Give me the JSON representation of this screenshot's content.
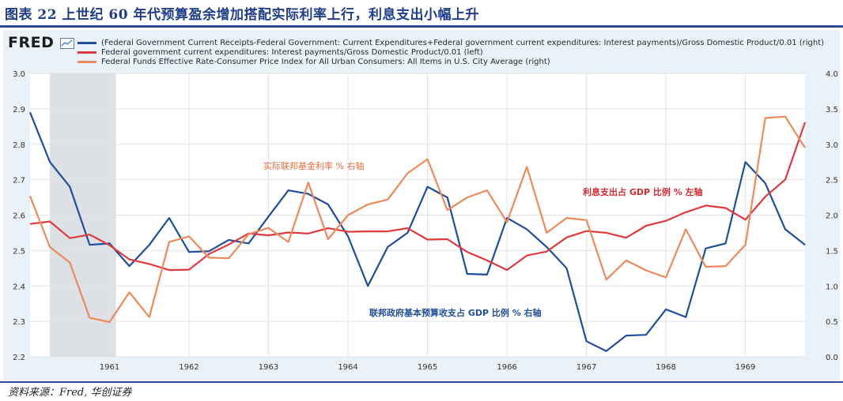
{
  "figure_title": "图表 22 上世纪 60 年代预算盈余增加搭配实际利率上行，利息支出小幅上升",
  "source": "资料来源：Fred, 华创证券",
  "legend": {
    "brand": "FRED",
    "icon": "chart-icon",
    "items": [
      {
        "label": "(Federal Government Current Receipts-Federal Government: Current Expenditures+Federal government current expenditures: Interest payments)/Gross Domestic Product/0.01 (right)",
        "color": "#1f4e9c"
      },
      {
        "label": "Federal government current expenditures: Interest payments/Gross Domestic Product/0.01 (left)",
        "color": "#e03a3e"
      },
      {
        "label": "Federal Funds Effective Rate-Consumer Price Index for All Urban Consumers: All Items in U.S. City Average (right)",
        "color": "#ee8a5a"
      }
    ]
  },
  "annotations": {
    "orange": "实际联邦基金利率 % 右轴",
    "red": "利息支出占 GDP 比例 % 左轴",
    "blue": "联邦政府基本预算收支占 GDP 比例 % 右轴"
  },
  "chart_data": {
    "type": "line",
    "title": "",
    "x_ticks": [
      "1961",
      "1962",
      "1963",
      "1964",
      "1965",
      "1966",
      "1967",
      "1968",
      "1969"
    ],
    "x_range": [
      1960.0,
      1969.75
    ],
    "left_axis": {
      "range": [
        2.2,
        3.0
      ],
      "ticks": [
        "2.2",
        "2.3",
        "2.4",
        "2.5",
        "2.6",
        "2.7",
        "2.8",
        "2.9",
        "3.0"
      ]
    },
    "right_axis": {
      "range": [
        0.0,
        4.0
      ],
      "ticks": [
        "0.0",
        "0.5",
        "1.0",
        "1.5",
        "2.0",
        "2.5",
        "3.0",
        "3.5",
        "4.0"
      ]
    },
    "recession": [
      1960.25,
      1961.08
    ],
    "grid": true,
    "series": [
      {
        "name": "(Federal Government Current Receipts-Federal Government: Current Expenditures+Federal government current expenditures: Interest payments)/Gross Domestic Product/0.01 (right)",
        "axis": "right",
        "color": "#1f4e9c",
        "x": [
          1960.0,
          1960.25,
          1960.5,
          1960.75,
          1961.0,
          1961.25,
          1961.5,
          1961.75,
          1962.0,
          1962.25,
          1962.5,
          1962.75,
          1963.0,
          1963.25,
          1963.5,
          1963.75,
          1964.0,
          1964.25,
          1964.5,
          1964.75,
          1965.0,
          1965.25,
          1965.5,
          1965.75,
          1966.0,
          1966.25,
          1966.5,
          1966.75,
          1967.0,
          1967.25,
          1967.5,
          1967.75,
          1968.0,
          1968.25,
          1968.5,
          1968.75,
          1969.0,
          1969.25,
          1969.5,
          1969.75
        ],
        "y": [
          3.45,
          2.75,
          2.4,
          1.58,
          1.6,
          1.28,
          1.58,
          1.96,
          1.48,
          1.49,
          1.65,
          1.6,
          1.98,
          2.35,
          2.3,
          2.15,
          1.7,
          1.0,
          1.55,
          1.75,
          2.4,
          2.25,
          1.17,
          1.16,
          1.96,
          1.8,
          1.55,
          1.25,
          0.22,
          0.08,
          0.3,
          0.31,
          0.67,
          0.56,
          1.53,
          1.6,
          2.75,
          2.45,
          1.8,
          1.58
        ]
      },
      {
        "name": "Federal government current expenditures: Interest payments/Gross Domestic Product/0.01 (left)",
        "axis": "left",
        "color": "#e03a3e",
        "x": [
          1960.0,
          1960.25,
          1960.5,
          1960.75,
          1961.0,
          1961.25,
          1961.5,
          1961.75,
          1962.0,
          1962.25,
          1962.5,
          1962.75,
          1963.0,
          1963.25,
          1963.5,
          1963.75,
          1964.0,
          1964.25,
          1964.5,
          1964.75,
          1965.0,
          1965.25,
          1965.5,
          1965.75,
          1966.0,
          1966.25,
          1966.5,
          1966.75,
          1967.0,
          1967.25,
          1967.5,
          1967.75,
          1968.0,
          1968.25,
          1968.5,
          1968.75,
          1969.0,
          1969.25,
          1969.5,
          1969.75
        ],
        "y": [
          2.575,
          2.582,
          2.535,
          2.545,
          2.515,
          2.475,
          2.462,
          2.445,
          2.446,
          2.49,
          2.517,
          2.548,
          2.543,
          2.551,
          2.548,
          2.563,
          2.553,
          2.554,
          2.554,
          2.563,
          2.531,
          2.532,
          2.496,
          2.472,
          2.445,
          2.486,
          2.497,
          2.537,
          2.555,
          2.55,
          2.536,
          2.57,
          2.584,
          2.608,
          2.627,
          2.62,
          2.587,
          2.652,
          2.7,
          2.862
        ]
      },
      {
        "name": "Federal Funds Effective Rate-Consumer Price Index for All Urban Consumers: All Items in U.S. City Average (right)",
        "axis": "right",
        "color": "#ee8a5a",
        "x": [
          1960.0,
          1960.25,
          1960.5,
          1960.75,
          1961.0,
          1961.25,
          1961.5,
          1961.75,
          1962.0,
          1962.25,
          1962.5,
          1962.75,
          1963.0,
          1963.25,
          1963.5,
          1963.75,
          1964.0,
          1964.25,
          1964.5,
          1964.75,
          1965.0,
          1965.25,
          1965.5,
          1965.75,
          1966.0,
          1966.25,
          1966.5,
          1966.75,
          1967.0,
          1967.25,
          1967.5,
          1967.75,
          1968.0,
          1968.25,
          1968.5,
          1968.75,
          1969.0,
          1969.25,
          1969.5,
          1969.75
        ],
        "y": [
          2.27,
          1.55,
          1.33,
          0.55,
          0.49,
          0.91,
          0.56,
          1.62,
          1.7,
          1.4,
          1.39,
          1.73,
          1.82,
          1.62,
          2.46,
          1.66,
          2.0,
          2.15,
          2.22,
          2.59,
          2.79,
          2.07,
          2.25,
          2.35,
          1.9,
          2.68,
          1.75,
          1.96,
          1.93,
          1.09,
          1.36,
          1.22,
          1.12,
          1.8,
          1.27,
          1.28,
          1.58,
          3.37,
          3.39,
          2.95
        ]
      }
    ]
  }
}
